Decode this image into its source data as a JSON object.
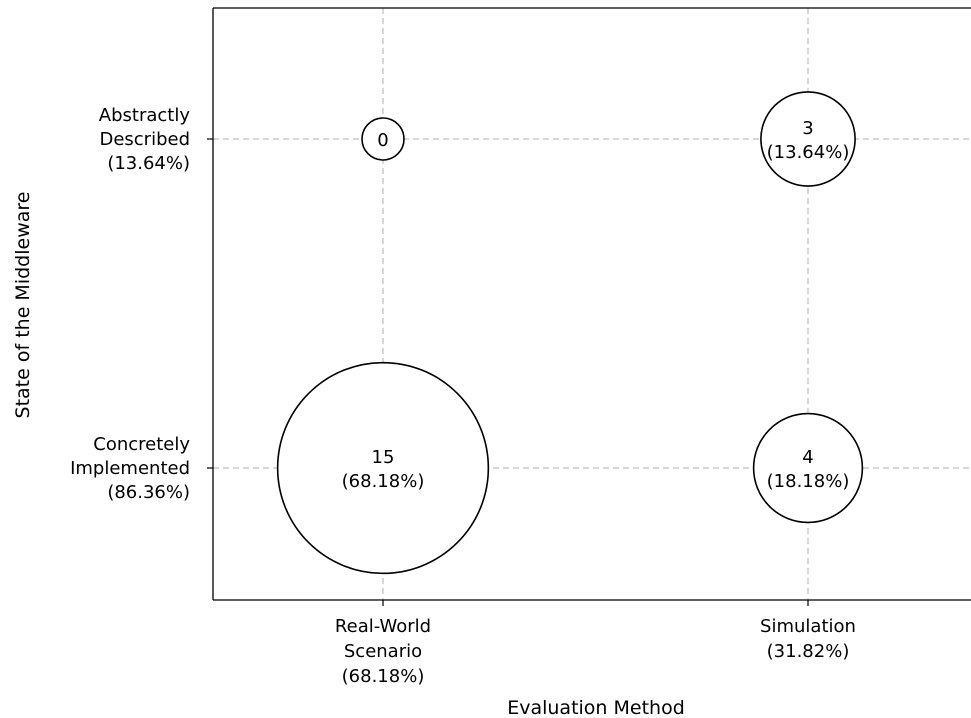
{
  "chart_data": {
    "type": "scatter",
    "subtype": "bubble",
    "title": "",
    "xlabel": "Evaluation Method",
    "ylabel": "State of the Middleware",
    "x_categories": [
      {
        "lines": [
          "Real-World",
          "Scenario",
          "(68.18%)"
        ]
      },
      {
        "lines": [
          "Simulation",
          "(31.82%)"
        ]
      }
    ],
    "y_categories": [
      {
        "lines": [
          "Concretely",
          "Implemented",
          "(86.36%)"
        ]
      },
      {
        "lines": [
          "Abstractly",
          "Described",
          "(13.64%)"
        ]
      }
    ],
    "points": [
      {
        "x": 0,
        "y": 1,
        "count": 0,
        "label": "0",
        "percent": ""
      },
      {
        "x": 1,
        "y": 1,
        "count": 3,
        "label": "3",
        "percent": "(13.64%)"
      },
      {
        "x": 0,
        "y": 0,
        "count": 15,
        "label": "15",
        "percent": "(68.18%)"
      },
      {
        "x": 1,
        "y": 0,
        "count": 4,
        "label": "4",
        "percent": "(18.18%)"
      }
    ],
    "grid": true,
    "grid_style": "dashed",
    "bubble_fill": "#ffffff",
    "bubble_stroke": "#000000",
    "grid_color": "#b0b0b0"
  }
}
